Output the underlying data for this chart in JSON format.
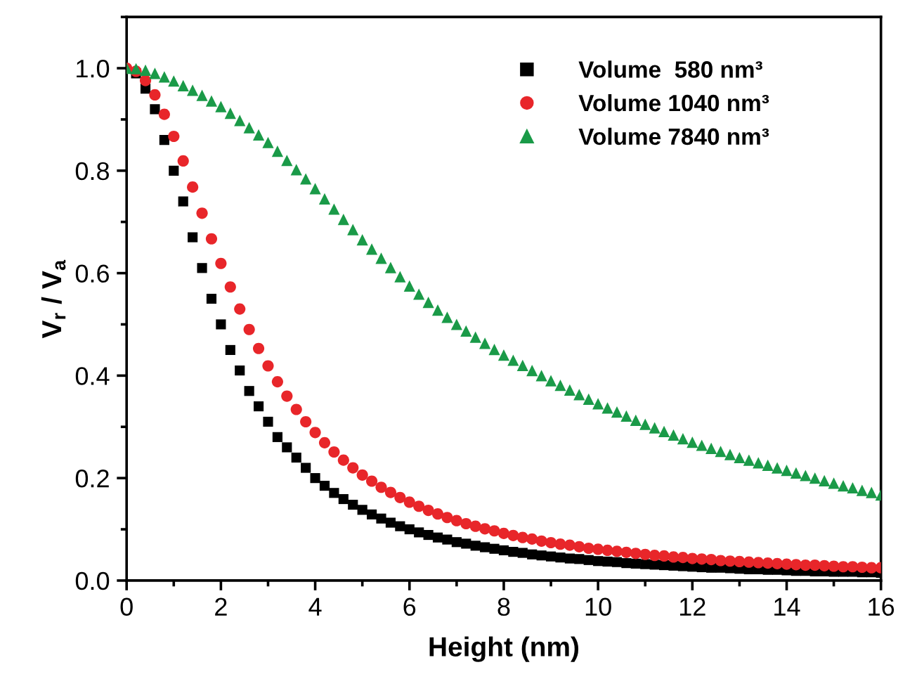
{
  "chart_data": {
    "type": "scatter",
    "xlabel": "Height (nm)",
    "ylabel": "V$_{r}$ / V$_{a}$",
    "xlim": [
      0,
      16
    ],
    "ylim": [
      0,
      1.1
    ],
    "xticks": [
      0,
      2,
      4,
      6,
      8,
      10,
      12,
      14,
      16
    ],
    "yticks": [
      {
        "value": 0,
        "label": "0.0"
      },
      0.2,
      0.4,
      0.6,
      0.8,
      {
        "value": 1,
        "label": "1.0"
      }
    ],
    "grid": false,
    "legend": "top right",
    "x": [
      0,
      0.2,
      0.4,
      0.6,
      0.8,
      1,
      1.2,
      1.4,
      1.6,
      1.8,
      2,
      2.2,
      2.4,
      2.6,
      2.8,
      3,
      3.2,
      3.4,
      3.6,
      3.8,
      4,
      4.2,
      4.4,
      4.6,
      4.8,
      5,
      5.2,
      5.4,
      5.6,
      5.8,
      6,
      6.2,
      6.4,
      6.6,
      6.8,
      7,
      7.2,
      7.4,
      7.6,
      7.8,
      8,
      8.2,
      8.4,
      8.6,
      8.8,
      9,
      9.2,
      9.4,
      9.6,
      9.8,
      10,
      10.2,
      10.4,
      10.6,
      10.8,
      11,
      11.2,
      11.4,
      11.6,
      11.8,
      12,
      12.2,
      12.4,
      12.6,
      12.8,
      13,
      13.2,
      13.4,
      13.6,
      13.8,
      14,
      14.2,
      14.4,
      14.6,
      14.8,
      15,
      15.2,
      15.4,
      15.6,
      15.8,
      16
    ],
    "series": [
      {
        "name": "Volume  580 nm³",
        "color": "#000000",
        "marker": "square",
        "values": [
          null,
          0.99,
          0.96,
          0.92,
          0.86,
          0.8,
          0.74,
          0.67,
          0.61,
          0.55,
          0.5,
          0.45,
          0.41,
          0.37,
          0.34,
          0.31,
          0.28,
          0.26,
          0.24,
          0.22,
          0.2,
          0.185,
          0.171,
          0.159,
          0.148,
          0.138,
          0.129,
          0.121,
          0.113,
          0.106,
          0.1,
          0.094,
          0.089,
          0.084,
          0.08,
          0.075,
          0.072,
          0.068,
          0.065,
          0.062,
          0.059,
          0.056,
          0.054,
          0.051,
          0.049,
          0.047,
          0.045,
          0.043,
          0.042,
          0.04,
          0.038,
          0.037,
          0.036,
          0.034,
          0.033,
          0.032,
          0.031,
          0.03,
          0.029,
          0.028,
          0.027,
          0.026,
          0.025,
          0.025,
          0.024,
          0.023,
          0.022,
          0.022,
          0.021,
          0.021,
          0.02,
          0.019,
          0.019,
          0.018,
          0.018,
          0.017,
          0.017,
          0.017,
          0.016,
          0.016,
          0.015
        ]
      },
      {
        "name": "Volume 1040 nm³",
        "color": "#e8262a",
        "marker": "circle",
        "values": [
          1.0,
          0.994,
          0.976,
          0.948,
          0.91,
          0.867,
          0.819,
          0.768,
          0.717,
          0.667,
          0.619,
          0.573,
          0.53,
          0.49,
          0.453,
          0.419,
          0.388,
          0.36,
          0.334,
          0.31,
          0.289,
          0.269,
          0.251,
          0.235,
          0.22,
          0.206,
          0.194,
          0.182,
          0.172,
          0.162,
          0.153,
          0.145,
          0.137,
          0.13,
          0.123,
          0.117,
          0.111,
          0.106,
          0.101,
          0.097,
          0.092,
          0.088,
          0.084,
          0.081,
          0.077,
          0.074,
          0.071,
          0.069,
          0.066,
          0.063,
          0.061,
          0.059,
          0.057,
          0.055,
          0.053,
          0.051,
          0.049,
          0.048,
          0.046,
          0.045,
          0.043,
          0.042,
          0.041,
          0.039,
          0.038,
          0.037,
          0.036,
          0.035,
          0.034,
          0.033,
          0.032,
          0.031,
          0.03,
          0.03,
          0.029,
          0.028,
          0.027,
          0.027,
          0.026,
          0.025,
          0.025
        ]
      },
      {
        "name": "Volume 7840 nm³",
        "color": "#1a9a48",
        "marker": "triangle",
        "values": [
          1.0,
          0.999,
          0.996,
          0.99,
          0.983,
          0.975,
          0.966,
          0.957,
          0.947,
          0.936,
          0.925,
          0.912,
          0.898,
          0.884,
          0.87,
          0.855,
          0.838,
          0.82,
          0.802,
          0.784,
          0.765,
          0.745,
          0.725,
          0.705,
          0.685,
          0.665,
          0.647,
          0.629,
          0.611,
          0.593,
          0.575,
          0.559,
          0.543,
          0.528,
          0.514,
          0.5,
          0.487,
          0.475,
          0.463,
          0.451,
          0.44,
          0.43,
          0.42,
          0.41,
          0.4,
          0.39,
          0.381,
          0.372,
          0.363,
          0.354,
          0.345,
          0.337,
          0.329,
          0.321,
          0.313,
          0.305,
          0.298,
          0.291,
          0.284,
          0.277,
          0.27,
          0.264,
          0.258,
          0.252,
          0.246,
          0.24,
          0.235,
          0.23,
          0.225,
          0.22,
          0.215,
          0.21,
          0.205,
          0.2,
          0.195,
          0.19,
          0.185,
          0.181,
          0.176,
          0.172,
          0.167
        ]
      }
    ]
  }
}
